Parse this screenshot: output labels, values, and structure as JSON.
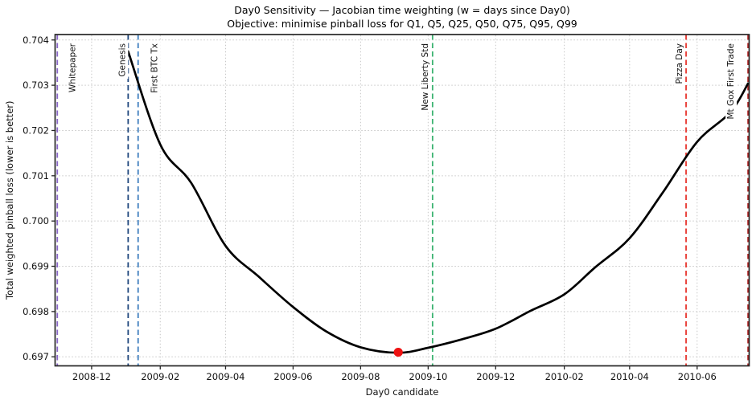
{
  "chart_data": {
    "type": "line",
    "title": "Day0 Sensitivity — Jacobian time weighting (w = days since Day0)",
    "subtitle": "Objective: minimise pinball loss for Q1, Q5, Q25, Q50, Q75, Q95, Q99",
    "xlabel": "Day0 candidate",
    "ylabel": "Total weighted pinball loss (lower is better)",
    "x_ticks": [
      "2008-12",
      "2009-02",
      "2009-04",
      "2009-06",
      "2009-08",
      "2009-10",
      "2009-12",
      "2010-02",
      "2010-04",
      "2010-06"
    ],
    "y_ticks": [
      0.697,
      0.698,
      0.699,
      0.7,
      0.701,
      0.702,
      0.703,
      0.704
    ],
    "xlim": [
      "2008-10-29",
      "2010-07-18"
    ],
    "ylim": [
      0.6968,
      0.70412
    ],
    "grid": true,
    "series": [
      {
        "name": "total weighted pinball loss",
        "color": "#000000",
        "x": [
          "2009-01-03",
          "2009-02-01",
          "2009-03-01",
          "2009-04-01",
          "2009-05-01",
          "2009-06-01",
          "2009-07-01",
          "2009-08-01",
          "2009-09-04",
          "2009-10-01",
          "2009-11-01",
          "2009-12-01",
          "2010-01-01",
          "2010-02-01",
          "2010-03-01",
          "2010-04-01",
          "2010-05-01",
          "2010-06-01",
          "2010-07-01",
          "2010-07-17"
        ],
        "y": [
          0.70375,
          0.70169,
          0.70084,
          0.69945,
          0.69877,
          0.6981,
          0.69756,
          0.69721,
          0.69709,
          0.6972,
          0.69739,
          0.69762,
          0.69801,
          0.69838,
          0.69898,
          0.69962,
          0.70063,
          0.70175,
          0.7024,
          0.70304
        ]
      }
    ],
    "minimum_marker": {
      "x": "2009-09-04",
      "y": 0.6971,
      "color": "#ee1111"
    },
    "events": [
      {
        "label": "Whitepaper",
        "date": "2008-10-31",
        "color": "#8a68c8",
        "label_dx": 19
      },
      {
        "label": "Genesis",
        "date": "2009-01-03",
        "color": "#1f477d",
        "label_dx": -7
      },
      {
        "label": "First BTC Tx",
        "date": "2009-01-12",
        "color": "#3f7fbf",
        "label_dx": 21
      },
      {
        "label": "New Liberty Std",
        "date": "2009-10-05",
        "color": "#3cb371",
        "label_dx": -9
      },
      {
        "label": "Pizza Day",
        "date": "2010-05-22",
        "color": "#e8352e",
        "label_dx": -8
      },
      {
        "label": "Mt Gox First Trade",
        "date": "2010-07-17",
        "color": "#b22222",
        "label_dx": -21
      }
    ],
    "layout": {
      "grid_color": "#c7c7c7",
      "spine_color": "#262626",
      "text_color": "#111111",
      "curve_width": 2.7,
      "legend": "none"
    }
  }
}
